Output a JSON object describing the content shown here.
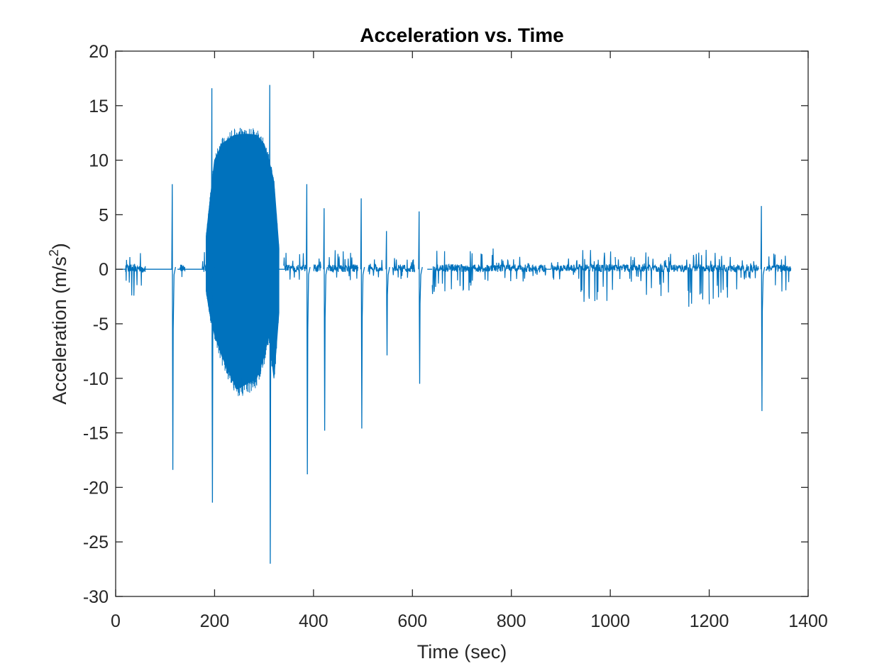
{
  "chart_data": {
    "type": "line",
    "title": "Acceleration vs. Time",
    "xlabel": "Time (sec)",
    "ylabel_main": "Acceleration (m/s",
    "ylabel_sup": "2",
    "ylabel_close": ")",
    "xlim": [
      0,
      1400
    ],
    "ylim": [
      -30,
      20
    ],
    "xticks": [
      0,
      200,
      400,
      600,
      800,
      1000,
      1200,
      1400
    ],
    "xtick_labels": [
      "0",
      "200",
      "400",
      "600",
      "800",
      "1000",
      "1200",
      "1400"
    ],
    "yticks": [
      20,
      15,
      10,
      5,
      0,
      -5,
      -10,
      -15,
      -20,
      -25,
      -30
    ],
    "ytick_labels": [
      "20",
      "15",
      "10",
      "5",
      "0",
      "-5",
      "-10",
      "-15",
      "-20",
      "-25",
      "-30"
    ],
    "grid": false,
    "line_color": "#0072BD",
    "axis_color": "#262626",
    "series": [
      {
        "baseline_segments": [
          [
            0,
            20
          ],
          [
            60,
            115
          ],
          [
            125,
            180
          ],
          [
            330,
            345
          ],
          [
            630,
            640
          ],
          [
            870,
            880
          ],
          [
            1220,
            1230
          ]
        ],
        "noise_segments": [
          [
            20,
            60,
            -2.5,
            2.0
          ],
          [
            130,
            140,
            -1.0,
            1.0
          ],
          [
            175,
            185,
            -0.5,
            1.8
          ],
          [
            340,
            385,
            -1.0,
            1.6
          ],
          [
            400,
            415,
            -1.2,
            1.0
          ],
          [
            430,
            490,
            -1.0,
            1.8
          ],
          [
            510,
            540,
            -0.8,
            1.0
          ],
          [
            560,
            605,
            -1.0,
            1.4
          ],
          [
            640,
            700,
            -2.5,
            2.0
          ],
          [
            700,
            770,
            -2.0,
            2.2
          ],
          [
            770,
            830,
            -1.2,
            1.2
          ],
          [
            830,
            870,
            -1.0,
            0.8
          ],
          [
            880,
            940,
            -1.2,
            1.0
          ],
          [
            940,
            1010,
            -3.0,
            1.8
          ],
          [
            1010,
            1070,
            -1.2,
            1.2
          ],
          [
            1070,
            1130,
            -2.8,
            1.8
          ],
          [
            1130,
            1200,
            -3.5,
            1.8
          ],
          [
            1200,
            1260,
            -2.8,
            1.6
          ],
          [
            1260,
            1300,
            -1.0,
            1.0
          ],
          [
            1315,
            1365,
            -2.2,
            2.0
          ]
        ],
        "dense_burst": {
          "x_start": 183,
          "x_end": 330,
          "upper": [
            [
              183,
              3
            ],
            [
              190,
              6
            ],
            [
              200,
              10
            ],
            [
              215,
              11.5
            ],
            [
              240,
              12.3
            ],
            [
              265,
              12.4
            ],
            [
              285,
              12.3
            ],
            [
              300,
              11.5
            ],
            [
              310,
              10
            ],
            [
              320,
              8
            ],
            [
              330,
              2
            ]
          ],
          "lower": [
            [
              183,
              -2
            ],
            [
              190,
              -4
            ],
            [
              200,
              -6
            ],
            [
              215,
              -8
            ],
            [
              230,
              -9.5
            ],
            [
              245,
              -11
            ],
            [
              265,
              -10.5
            ],
            [
              285,
              -10
            ],
            [
              300,
              -8
            ],
            [
              310,
              -6
            ],
            [
              320,
              -10
            ],
            [
              330,
              -4
            ]
          ]
        },
        "spikes": [
          [
            115,
            7.8,
            -18.4
          ],
          [
            195,
            16.6,
            -21.4
          ],
          [
            312,
            16.9,
            -27.0
          ],
          [
            387,
            7.8,
            -18.8
          ],
          [
            422,
            5.6,
            -14.8
          ],
          [
            497,
            6.5,
            -14.6
          ],
          [
            548,
            3.5,
            -7.9
          ],
          [
            614,
            5.3,
            -10.5
          ],
          [
            1306,
            5.8,
            -13.0
          ]
        ]
      }
    ]
  }
}
